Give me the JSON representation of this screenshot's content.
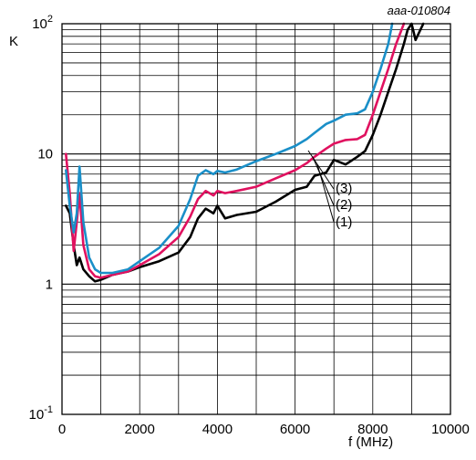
{
  "chart_data": {
    "type": "line",
    "code": "aaa-010804",
    "xlabel": "f (MHz)",
    "ylabel": "K",
    "xlim": [
      0,
      10000
    ],
    "ylim": [
      0.1,
      100
    ],
    "ylog": true,
    "grid": true,
    "x_ticks": [
      "0",
      "2000",
      "4000",
      "6000",
      "8000",
      "10000"
    ],
    "y_ticks": [
      {
        "value": 0.1,
        "base": "10",
        "exp": "-1"
      },
      {
        "value": 1,
        "base": "1",
        "exp": ""
      },
      {
        "value": 10,
        "base": "10",
        "exp": ""
      },
      {
        "value": 100,
        "base": "10",
        "exp": "2"
      }
    ],
    "series": [
      {
        "name": "(1)",
        "color": "#000000",
        "points": [
          [
            100,
            4.0
          ],
          [
            200,
            3.5
          ],
          [
            300,
            2.0
          ],
          [
            380,
            1.4
          ],
          [
            450,
            1.6
          ],
          [
            550,
            1.3
          ],
          [
            700,
            1.15
          ],
          [
            850,
            1.05
          ],
          [
            1000,
            1.08
          ],
          [
            1300,
            1.18
          ],
          [
            1700,
            1.25
          ],
          [
            2000,
            1.35
          ],
          [
            2500,
            1.5
          ],
          [
            3000,
            1.75
          ],
          [
            3300,
            2.3
          ],
          [
            3500,
            3.2
          ],
          [
            3700,
            3.8
          ],
          [
            3900,
            3.5
          ],
          [
            4000,
            4.0
          ],
          [
            4200,
            3.2
          ],
          [
            4500,
            3.4
          ],
          [
            5000,
            3.6
          ],
          [
            5500,
            4.3
          ],
          [
            6000,
            5.3
          ],
          [
            6300,
            5.6
          ],
          [
            6500,
            6.8
          ],
          [
            6800,
            7.2
          ],
          [
            7000,
            9.0
          ],
          [
            7300,
            8.3
          ],
          [
            7600,
            9.5
          ],
          [
            7800,
            10.5
          ],
          [
            8000,
            14.0
          ],
          [
            8200,
            20.0
          ],
          [
            8400,
            30.0
          ],
          [
            8600,
            45.0
          ],
          [
            8800,
            70.0
          ],
          [
            8900,
            90.0
          ],
          [
            9000,
            100.0
          ],
          [
            9100,
            75.0
          ],
          [
            9300,
            100.0
          ]
        ]
      },
      {
        "name": "(2)",
        "color": "#e0115f",
        "points": [
          [
            100,
            10.0
          ],
          [
            200,
            5.0
          ],
          [
            300,
            1.8
          ],
          [
            380,
            3.0
          ],
          [
            450,
            5.0
          ],
          [
            550,
            2.0
          ],
          [
            700,
            1.3
          ],
          [
            850,
            1.15
          ],
          [
            1000,
            1.12
          ],
          [
            1300,
            1.18
          ],
          [
            1700,
            1.25
          ],
          [
            2000,
            1.4
          ],
          [
            2500,
            1.7
          ],
          [
            3000,
            2.3
          ],
          [
            3300,
            3.3
          ],
          [
            3500,
            4.5
          ],
          [
            3700,
            5.2
          ],
          [
            3900,
            4.8
          ],
          [
            4000,
            5.2
          ],
          [
            4200,
            5.0
          ],
          [
            4500,
            5.2
          ],
          [
            5000,
            5.6
          ],
          [
            5500,
            6.5
          ],
          [
            6000,
            7.5
          ],
          [
            6300,
            8.5
          ],
          [
            6500,
            9.5
          ],
          [
            6800,
            11.0
          ],
          [
            7000,
            12.0
          ],
          [
            7300,
            12.8
          ],
          [
            7600,
            13.0
          ],
          [
            7800,
            14.0
          ],
          [
            8000,
            20.0
          ],
          [
            8200,
            30.0
          ],
          [
            8400,
            45.0
          ],
          [
            8600,
            70.0
          ],
          [
            8800,
            100.0
          ]
        ]
      },
      {
        "name": "(3)",
        "color": "#1a8fc8",
        "points": [
          [
            100,
            7.5
          ],
          [
            200,
            4.0
          ],
          [
            300,
            2.5
          ],
          [
            380,
            3.5
          ],
          [
            450,
            8.0
          ],
          [
            550,
            3.0
          ],
          [
            700,
            1.6
          ],
          [
            850,
            1.3
          ],
          [
            1000,
            1.22
          ],
          [
            1300,
            1.22
          ],
          [
            1700,
            1.3
          ],
          [
            2000,
            1.5
          ],
          [
            2500,
            1.9
          ],
          [
            3000,
            2.8
          ],
          [
            3300,
            4.5
          ],
          [
            3500,
            6.8
          ],
          [
            3700,
            7.5
          ],
          [
            3900,
            7.0
          ],
          [
            4000,
            7.4
          ],
          [
            4200,
            7.2
          ],
          [
            4500,
            7.6
          ],
          [
            5000,
            8.8
          ],
          [
            5500,
            10.0
          ],
          [
            6000,
            11.5
          ],
          [
            6300,
            13.0
          ],
          [
            6500,
            14.5
          ],
          [
            6800,
            17.0
          ],
          [
            7000,
            18.0
          ],
          [
            7300,
            20.0
          ],
          [
            7600,
            20.5
          ],
          [
            7800,
            22.0
          ],
          [
            8000,
            30.0
          ],
          [
            8200,
            45.0
          ],
          [
            8400,
            70.0
          ],
          [
            8500,
            100.0
          ]
        ]
      }
    ]
  }
}
